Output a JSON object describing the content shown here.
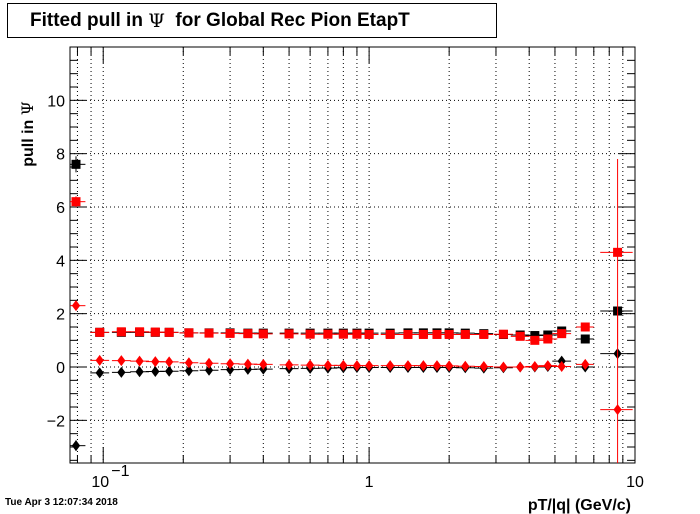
{
  "title": {
    "prefix": "Fitted pull in ",
    "symbol": "Ψ",
    "suffix": "  for Global Rec Pion EtapT"
  },
  "timestamp": "Tue Apr  3 12:07:34 2018",
  "chart_data": {
    "type": "scatter",
    "x_scale": "log",
    "xlim": [
      0.075,
      10
    ],
    "ylim": [
      -3.6,
      12
    ],
    "xlabel": "pT/|q| (GeV/c)",
    "ylabel_prefix": "pull in ",
    "ylabel_symbol": "Ψ",
    "grid": true,
    "x_tick_labels": [
      {
        "value": 0.1,
        "base": "10",
        "exp": "−1"
      },
      {
        "value": 1,
        "base": "1",
        "exp": ""
      },
      {
        "value": 10,
        "base": "10",
        "exp": ""
      }
    ],
    "y_ticks": [
      -2,
      0,
      2,
      4,
      6,
      8,
      10
    ],
    "y_tick_labels": [
      "−2",
      "0",
      "2",
      "4",
      "6",
      "8",
      "10"
    ],
    "series": [
      {
        "color": "#000000",
        "marker": "square",
        "points": [
          {
            "x": 0.079,
            "y": 7.6,
            "ey": 0.3
          },
          {
            "x": 0.097,
            "y": 1.3
          },
          {
            "x": 0.117,
            "y": 1.3
          },
          {
            "x": 0.137,
            "y": 1.3
          },
          {
            "x": 0.157,
            "y": 1.3
          },
          {
            "x": 0.177,
            "y": 1.3
          },
          {
            "x": 0.21,
            "y": 1.28
          },
          {
            "x": 0.25,
            "y": 1.28
          },
          {
            "x": 0.3,
            "y": 1.28
          },
          {
            "x": 0.35,
            "y": 1.27
          },
          {
            "x": 0.4,
            "y": 1.27
          },
          {
            "x": 0.5,
            "y": 1.27
          },
          {
            "x": 0.6,
            "y": 1.27
          },
          {
            "x": 0.7,
            "y": 1.27
          },
          {
            "x": 0.8,
            "y": 1.27
          },
          {
            "x": 0.9,
            "y": 1.27
          },
          {
            "x": 1.0,
            "y": 1.27
          },
          {
            "x": 1.2,
            "y": 1.27
          },
          {
            "x": 1.4,
            "y": 1.28
          },
          {
            "x": 1.6,
            "y": 1.28
          },
          {
            "x": 1.8,
            "y": 1.28
          },
          {
            "x": 2.0,
            "y": 1.28
          },
          {
            "x": 2.3,
            "y": 1.27
          },
          {
            "x": 2.7,
            "y": 1.25
          },
          {
            "x": 3.2,
            "y": 1.22
          },
          {
            "x": 3.7,
            "y": 1.2
          },
          {
            "x": 4.2,
            "y": 1.18
          },
          {
            "x": 4.7,
            "y": 1.2
          },
          {
            "x": 5.3,
            "y": 1.35
          },
          {
            "x": 6.5,
            "y": 1.05,
            "ex": 0.5
          },
          {
            "x": 8.6,
            "y": 2.1,
            "ex": 1.2,
            "ey": 0.15
          }
        ]
      },
      {
        "color": "#ff0000",
        "marker": "square",
        "points": [
          {
            "x": 0.079,
            "y": 6.2,
            "ey": 0.2
          },
          {
            "x": 0.097,
            "y": 1.3
          },
          {
            "x": 0.117,
            "y": 1.32
          },
          {
            "x": 0.137,
            "y": 1.32
          },
          {
            "x": 0.157,
            "y": 1.31
          },
          {
            "x": 0.177,
            "y": 1.3
          },
          {
            "x": 0.21,
            "y": 1.28
          },
          {
            "x": 0.25,
            "y": 1.27
          },
          {
            "x": 0.3,
            "y": 1.26
          },
          {
            "x": 0.35,
            "y": 1.25
          },
          {
            "x": 0.4,
            "y": 1.24
          },
          {
            "x": 0.5,
            "y": 1.24
          },
          {
            "x": 0.6,
            "y": 1.23
          },
          {
            "x": 0.7,
            "y": 1.23
          },
          {
            "x": 0.8,
            "y": 1.23
          },
          {
            "x": 0.9,
            "y": 1.23
          },
          {
            "x": 1.0,
            "y": 1.22
          },
          {
            "x": 1.2,
            "y": 1.22
          },
          {
            "x": 1.4,
            "y": 1.22
          },
          {
            "x": 1.6,
            "y": 1.22
          },
          {
            "x": 1.8,
            "y": 1.22
          },
          {
            "x": 2.0,
            "y": 1.22
          },
          {
            "x": 2.3,
            "y": 1.22
          },
          {
            "x": 2.7,
            "y": 1.22
          },
          {
            "x": 3.2,
            "y": 1.23
          },
          {
            "x": 3.7,
            "y": 1.15
          },
          {
            "x": 4.2,
            "y": 1.0
          },
          {
            "x": 4.7,
            "y": 1.05
          },
          {
            "x": 5.3,
            "y": 1.25
          },
          {
            "x": 6.5,
            "y": 1.5,
            "ex": 0.5
          },
          {
            "x": 8.6,
            "y": 4.3,
            "ex": 1.2,
            "ey": 3.5
          }
        ]
      },
      {
        "color": "#000000",
        "marker": "diamond",
        "points": [
          {
            "x": 0.079,
            "y": -2.95,
            "ey": 0.2
          },
          {
            "x": 0.097,
            "y": -0.22
          },
          {
            "x": 0.117,
            "y": -0.2
          },
          {
            "x": 0.137,
            "y": -0.18
          },
          {
            "x": 0.157,
            "y": -0.17
          },
          {
            "x": 0.177,
            "y": -0.16
          },
          {
            "x": 0.21,
            "y": -0.14
          },
          {
            "x": 0.25,
            "y": -0.12
          },
          {
            "x": 0.3,
            "y": -0.1
          },
          {
            "x": 0.35,
            "y": -0.09
          },
          {
            "x": 0.4,
            "y": -0.08
          },
          {
            "x": 0.5,
            "y": -0.06
          },
          {
            "x": 0.6,
            "y": -0.05
          },
          {
            "x": 0.7,
            "y": -0.04
          },
          {
            "x": 0.8,
            "y": -0.03
          },
          {
            "x": 0.9,
            "y": -0.02
          },
          {
            "x": 1.0,
            "y": -0.02
          },
          {
            "x": 1.2,
            "y": -0.02
          },
          {
            "x": 1.4,
            "y": -0.02
          },
          {
            "x": 1.6,
            "y": -0.02
          },
          {
            "x": 1.8,
            "y": -0.02
          },
          {
            "x": 2.0,
            "y": -0.02
          },
          {
            "x": 2.3,
            "y": -0.03
          },
          {
            "x": 2.7,
            "y": -0.04
          },
          {
            "x": 3.2,
            "y": -0.03
          },
          {
            "x": 3.7,
            "y": 0.0
          },
          {
            "x": 4.2,
            "y": 0.0
          },
          {
            "x": 4.7,
            "y": 0.02
          },
          {
            "x": 5.3,
            "y": 0.22
          },
          {
            "x": 6.5,
            "y": 0.0,
            "ex": 0.5
          },
          {
            "x": 8.6,
            "y": 0.5,
            "ex": 1.2,
            "ey": 0.1
          }
        ]
      },
      {
        "color": "#ff0000",
        "marker": "diamond",
        "points": [
          {
            "x": 0.079,
            "y": 2.3,
            "ey": 0.15
          },
          {
            "x": 0.097,
            "y": 0.25
          },
          {
            "x": 0.117,
            "y": 0.24
          },
          {
            "x": 0.137,
            "y": 0.22
          },
          {
            "x": 0.157,
            "y": 0.2
          },
          {
            "x": 0.177,
            "y": 0.19
          },
          {
            "x": 0.21,
            "y": 0.16
          },
          {
            "x": 0.25,
            "y": 0.14
          },
          {
            "x": 0.3,
            "y": 0.12
          },
          {
            "x": 0.35,
            "y": 0.11
          },
          {
            "x": 0.4,
            "y": 0.1
          },
          {
            "x": 0.5,
            "y": 0.08
          },
          {
            "x": 0.6,
            "y": 0.07
          },
          {
            "x": 0.7,
            "y": 0.06
          },
          {
            "x": 0.8,
            "y": 0.06
          },
          {
            "x": 0.9,
            "y": 0.05
          },
          {
            "x": 1.0,
            "y": 0.05
          },
          {
            "x": 1.2,
            "y": 0.05
          },
          {
            "x": 1.4,
            "y": 0.05
          },
          {
            "x": 1.6,
            "y": 0.05
          },
          {
            "x": 1.8,
            "y": 0.05
          },
          {
            "x": 2.0,
            "y": 0.04
          },
          {
            "x": 2.3,
            "y": 0.03
          },
          {
            "x": 2.7,
            "y": 0.02
          },
          {
            "x": 3.2,
            "y": 0.0
          },
          {
            "x": 3.7,
            "y": 0.0
          },
          {
            "x": 4.2,
            "y": 0.02
          },
          {
            "x": 4.7,
            "y": 0.05
          },
          {
            "x": 5.3,
            "y": 0.02
          },
          {
            "x": 6.5,
            "y": 0.1,
            "ex": 0.5
          },
          {
            "x": 8.6,
            "y": -1.6,
            "ex": 1.2,
            "ey": 3.6
          }
        ]
      }
    ]
  }
}
